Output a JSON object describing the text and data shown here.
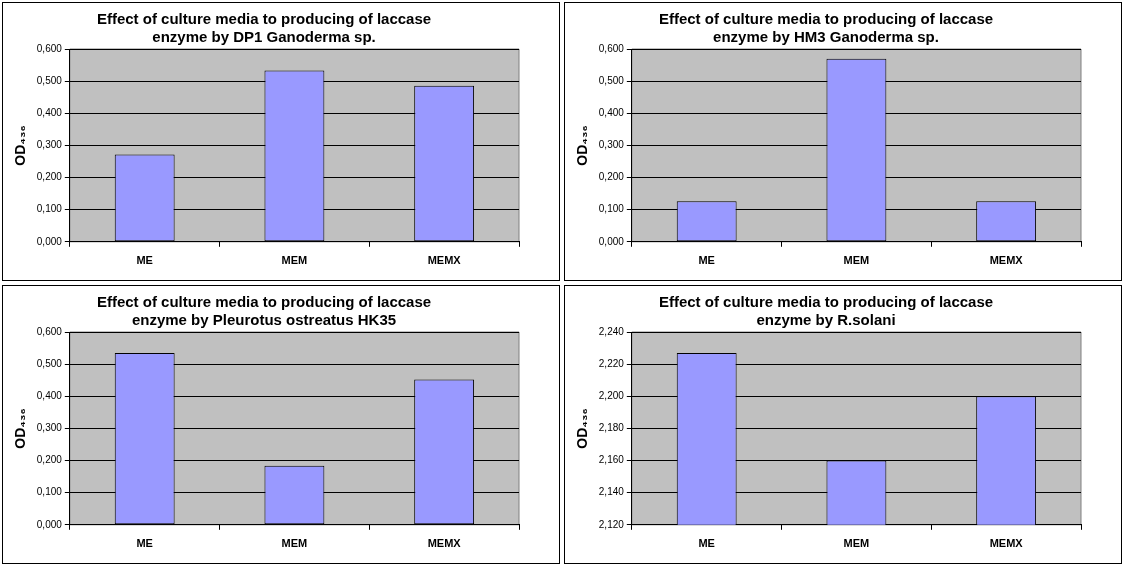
{
  "chart_data": [
    {
      "type": "bar",
      "title": "Effect of culture media to producing of laccase enzyme by DP1 Ganoderma sp.",
      "ylabel": "OD₄₃₆",
      "categories": [
        "ME",
        "MEM",
        "MEMX"
      ],
      "values": [
        0.272,
        0.533,
        0.486
      ],
      "color": "#9999ff",
      "ylim": [
        0,
        0.6
      ],
      "yticks": [
        {
          "value": 0,
          "label": "0,000"
        },
        {
          "value": 0.1,
          "label": "0,100"
        },
        {
          "value": 0.2,
          "label": "0,200"
        },
        {
          "value": 0.3,
          "label": "0,300"
        },
        {
          "value": 0.4,
          "label": "0,400"
        },
        {
          "value": 0.5,
          "label": "0,500"
        },
        {
          "value": 0.6,
          "label": "0,600"
        }
      ],
      "grid": "y",
      "legend": false
    },
    {
      "type": "bar",
      "title": "Effect of culture media to producing of laccase enzyme by HM3 Ganoderma sp.",
      "ylabel": "OD₄₃₆",
      "categories": [
        "ME",
        "MEM",
        "MEMX"
      ],
      "values": [
        0.126,
        0.57,
        0.126
      ],
      "color": "#9999ff",
      "ylim": [
        0,
        0.6
      ],
      "yticks": [
        {
          "value": 0,
          "label": "0,000"
        },
        {
          "value": 0.1,
          "label": "0,100"
        },
        {
          "value": 0.2,
          "label": "0,200"
        },
        {
          "value": 0.3,
          "label": "0,300"
        },
        {
          "value": 0.4,
          "label": "0,400"
        },
        {
          "value": 0.5,
          "label": "0,500"
        },
        {
          "value": 0.6,
          "label": "0,600"
        }
      ],
      "grid": "y",
      "legend": false
    },
    {
      "type": "bar",
      "title": "Effect of culture media to producing of laccase enzyme by Pleurotus ostreatus HK35",
      "ylabel": "OD₄₃₆",
      "categories": [
        "ME",
        "MEM",
        "MEMX"
      ],
      "values": [
        0.535,
        0.184,
        0.452
      ],
      "color": "#9999ff",
      "ylim": [
        0,
        0.6
      ],
      "yticks": [
        {
          "value": 0,
          "label": "0,000"
        },
        {
          "value": 0.1,
          "label": "0,100"
        },
        {
          "value": 0.2,
          "label": "0,200"
        },
        {
          "value": 0.3,
          "label": "0,300"
        },
        {
          "value": 0.4,
          "label": "0,400"
        },
        {
          "value": 0.5,
          "label": "0,500"
        },
        {
          "value": 0.6,
          "label": "0,600"
        }
      ],
      "grid": "y",
      "legend": false
    },
    {
      "type": "bar",
      "title": "Effect of culture media to producing of laccase enzyme by R.solani",
      "ylabel": "OD₄₃₆",
      "categories": [
        "ME",
        "MEM",
        "MEMX"
      ],
      "values": [
        2.227,
        2.16,
        2.2
      ],
      "color": "#9999ff",
      "ylim": [
        2.12,
        2.24
      ],
      "yticks": [
        {
          "value": 2.12,
          "label": "2,120"
        },
        {
          "value": 2.14,
          "label": "2,140"
        },
        {
          "value": 2.16,
          "label": "2,160"
        },
        {
          "value": 2.18,
          "label": "2,180"
        },
        {
          "value": 2.2,
          "label": "2,200"
        },
        {
          "value": 2.22,
          "label": "2,220"
        },
        {
          "value": 2.24,
          "label": "2,240"
        }
      ],
      "grid": "y",
      "legend": false
    }
  ]
}
